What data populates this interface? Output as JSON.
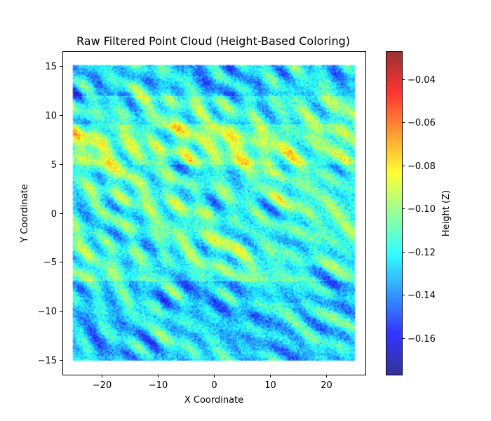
{
  "chart_data": {
    "type": "scatter",
    "title": "Raw Filtered Point Cloud (Height-Based Coloring)",
    "xlabel": "X Coordinate",
    "ylabel": "Y Coordinate",
    "xlim": [
      -27,
      27
    ],
    "ylim": [
      -16.5,
      16.5
    ],
    "data_extent": {
      "x": [
        -25,
        25
      ],
      "y": [
        -15,
        15
      ]
    },
    "xticks": [
      -20,
      -10,
      0,
      10,
      20
    ],
    "xtick_labels": [
      "−20",
      "−10",
      "0",
      "10",
      "20"
    ],
    "yticks": [
      -15,
      -10,
      -5,
      0,
      5,
      10,
      15
    ],
    "ytick_labels": [
      "−15",
      "−10",
      "−5",
      "0",
      "5",
      "10",
      "15"
    ],
    "colorbar": {
      "label": "Height (Z)",
      "colormap": "jet",
      "range": [
        -0.177,
        -0.027
      ],
      "ticks": [
        -0.16,
        -0.14,
        -0.12,
        -0.1,
        -0.08,
        -0.06,
        -0.04
      ],
      "tick_labels": [
        "−0.16",
        "−0.14",
        "−0.12",
        "−0.10",
        "−0.08",
        "−0.06",
        "−0.04"
      ]
    },
    "grid": false,
    "height_bands": [
      {
        "y_range": [
          12,
          15
        ],
        "level": "low"
      },
      {
        "y_range": [
          5,
          9
        ],
        "level": "high"
      },
      {
        "y_range": [
          -15,
          -7
        ],
        "level": "low"
      }
    ]
  }
}
